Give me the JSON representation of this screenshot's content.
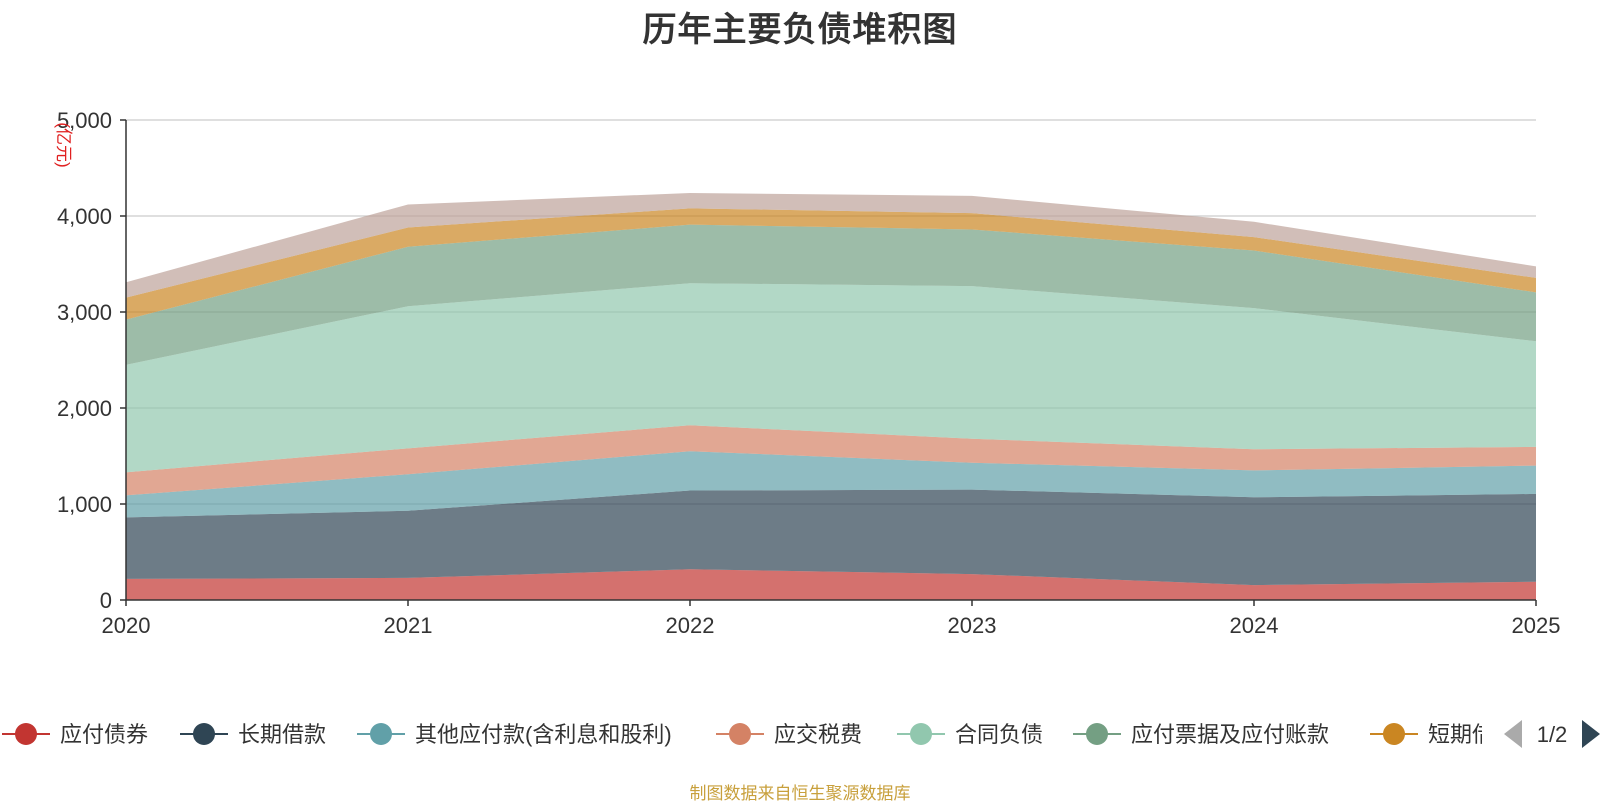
{
  "chart_data": {
    "type": "area",
    "stacked": true,
    "title": "历年主要负债堆积图",
    "ylabel": "(亿元)",
    "x": [
      "2020",
      "2021",
      "2022",
      "2023",
      "2024",
      "2025"
    ],
    "ylim": [
      0,
      5000
    ],
    "yticks": [
      0,
      1000,
      2000,
      3000,
      4000,
      5000
    ],
    "ytick_labels": [
      "0",
      "1,000",
      "2,000",
      "3,000",
      "4,000",
      "5,000"
    ],
    "grid": true,
    "legend_position": "bottom",
    "series": [
      {
        "name": "应付债券",
        "color": "#c23531",
        "values": [
          220,
          230,
          320,
          270,
          155,
          190
        ]
      },
      {
        "name": "长期借款",
        "color": "#2f4554",
        "values": [
          640,
          700,
          820,
          880,
          915,
          915
        ]
      },
      {
        "name": "其他应付款(含利息和股利)",
        "color": "#61a0a8",
        "values": [
          230,
          380,
          410,
          280,
          280,
          295
        ]
      },
      {
        "name": "应交税费",
        "color": "#d48265",
        "values": [
          240,
          270,
          270,
          250,
          220,
          195
        ]
      },
      {
        "name": "合同负债",
        "color": "#91c7ae",
        "values": [
          1120,
          1480,
          1480,
          1590,
          1470,
          1100
        ]
      },
      {
        "name": "应付票据及应付账款",
        "color": "#749f83",
        "values": [
          470,
          620,
          610,
          590,
          600,
          510
        ]
      },
      {
        "name": "短期借款",
        "color": "#ca8622",
        "values": [
          230,
          200,
          170,
          170,
          140,
          150
        ]
      },
      {
        "name": "",
        "color": "#bda29a",
        "values": [
          160,
          240,
          160,
          180,
          160,
          120
        ]
      }
    ]
  },
  "legend": {
    "visible_labels": [
      "应付债券",
      "长期借款",
      "其他应付款(含利息和股利)",
      "应交税费",
      "合同负债",
      "应付票据及应付账款",
      "短期借"
    ],
    "page_indicator": "1/2"
  },
  "source_note": "制图数据来自恒生聚源数据库"
}
